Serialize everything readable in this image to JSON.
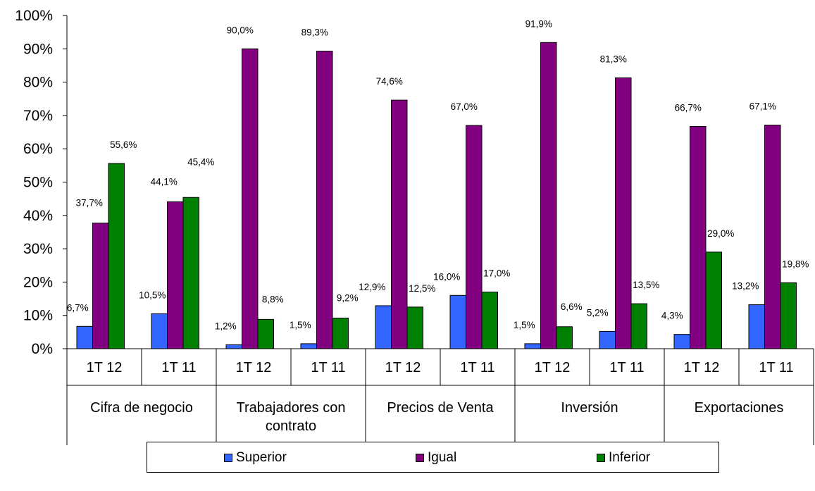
{
  "chart_data": {
    "type": "bar",
    "groups": [
      {
        "label": "Cifra de negocio",
        "categories": [
          "1T 12",
          "1T 11"
        ]
      },
      {
        "label": "Trabajadores con contrato",
        "categories": [
          "1T 12",
          "1T 11"
        ]
      },
      {
        "label": "Precios de Venta",
        "categories": [
          "1T 12",
          "1T 11"
        ]
      },
      {
        "label": "Inversión",
        "categories": [
          "1T 12",
          "1T 11"
        ]
      },
      {
        "label": "Exportaciones",
        "categories": [
          "1T 12",
          "1T 11"
        ]
      }
    ],
    "categories": [
      "1T 12",
      "1T 11",
      "1T 12",
      "1T 11",
      "1T 12",
      "1T 11",
      "1T 12",
      "1T 11",
      "1T 12",
      "1T 11"
    ],
    "series": [
      {
        "name": "Superior",
        "color": "#3366FF",
        "values": [
          6.7,
          10.5,
          1.2,
          1.5,
          12.9,
          16.0,
          1.5,
          5.2,
          4.3,
          13.2
        ],
        "labels": [
          "6,7%",
          "10,5%",
          "1,2%",
          "1,5%",
          "12,9%",
          "16,0%",
          "1,5%",
          "5,2%",
          "4,3%",
          "13,2%"
        ]
      },
      {
        "name": "Igual",
        "color": "#800080",
        "values": [
          37.7,
          44.1,
          90.0,
          89.3,
          74.6,
          67.0,
          91.9,
          81.3,
          66.7,
          67.1
        ],
        "labels": [
          "37,7%",
          "44,1%",
          "90,0%",
          "89,3%",
          "74,6%",
          "67,0%",
          "91,9%",
          "81,3%",
          "66,7%",
          "67,1%"
        ]
      },
      {
        "name": "Inferior",
        "color": "#008000",
        "values": [
          55.6,
          45.4,
          8.8,
          9.2,
          12.5,
          17.0,
          6.6,
          13.5,
          29.0,
          19.8
        ],
        "labels": [
          "55,6%",
          "45,4%",
          "8,8%",
          "9,2%",
          "12,5%",
          "17,0%",
          "6,6%",
          "13,5%",
          "29,0%",
          "19,8%"
        ]
      }
    ],
    "yticks": [
      "0%",
      "10%",
      "20%",
      "30%",
      "40%",
      "50%",
      "60%",
      "70%",
      "80%",
      "90%",
      "100%"
    ],
    "ylim": [
      0,
      100
    ],
    "grid": false,
    "legend": "bottom"
  }
}
